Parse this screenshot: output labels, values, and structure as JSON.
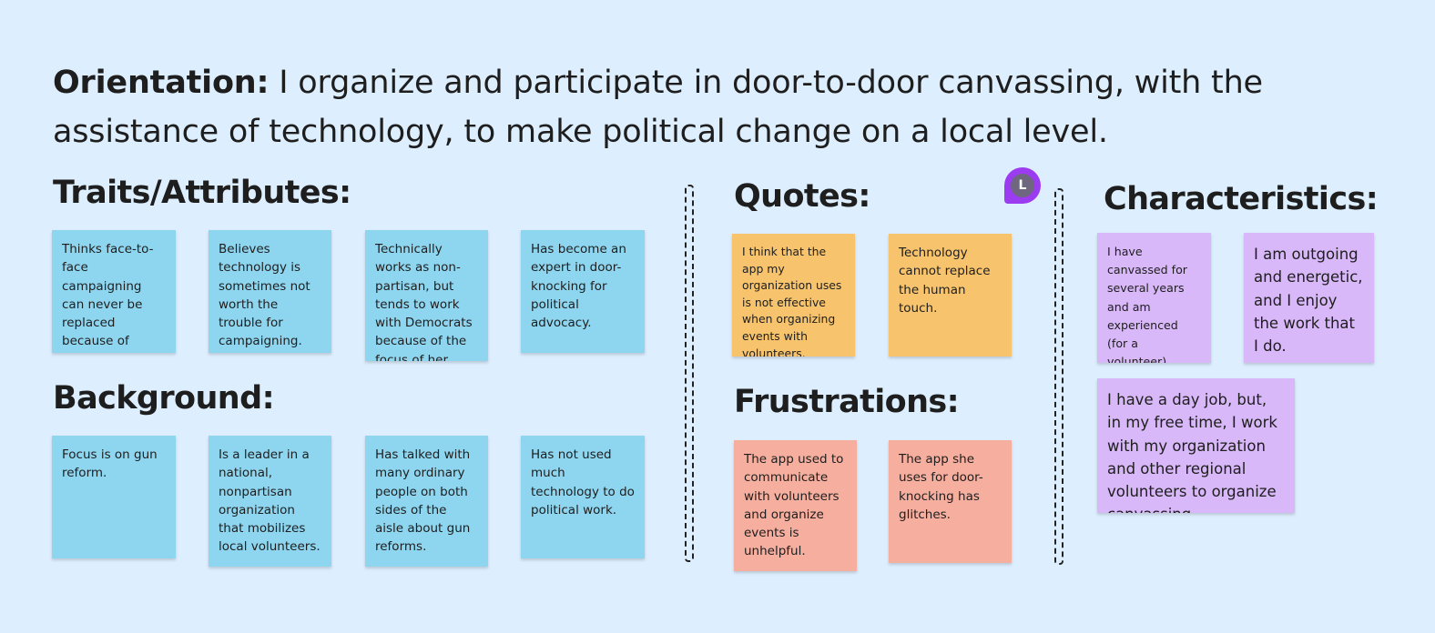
{
  "orientation": {
    "lead": "Orientation:",
    "text": " I organize and participate in door-to-door canvassing, with the assistance of technology, to make political change on a local level."
  },
  "sections": {
    "traits": {
      "title": "Traits/Attributes:",
      "notes": [
        "Thinks face-to-face campaigning can never be replaced because of human touch.",
        "Believes technology is sometimes not worth the trouble for campaigning.",
        "Technically works as non-partisan, but tends to work with Democrats because of the focus of her work.",
        "Has become an expert in door-knocking for political advocacy."
      ]
    },
    "background": {
      "title": "Background:",
      "notes": [
        "Focus is on gun reform.",
        "Is a leader in a national, nonpartisan organization that mobilizes local volunteers.",
        "Has talked with many ordinary people on both sides of the aisle about gun reforms.",
        "Has not used much technology to do political work."
      ]
    },
    "quotes": {
      "title": "Quotes:",
      "notes": [
        "I think that the app my organization uses is not effective when organizing events with volunteers.",
        "Technology cannot replace the human touch."
      ]
    },
    "frustrations": {
      "title": "Frustrations:",
      "notes": [
        "The app used to communicate with volunteers and organize events is unhelpful.",
        "The app she uses for door-knocking has glitches."
      ]
    },
    "characteristics": {
      "title": "Characteristics:",
      "notes": [
        "I have canvassed for several years and am experienced (for a volunteer).",
        "I am outgoing and energetic, and I enjoy the work that I do.",
        "I have a day job, but, in my free time, I work with my organization and other regional volunteers to organize canvassing."
      ]
    }
  },
  "collaborator": {
    "initial": "L"
  },
  "colors": {
    "background": "#ddeefe",
    "blue_note": "#8ed6f0",
    "orange_note": "#f7c46d",
    "salmon_note": "#f6ae9e",
    "purple_note": "#d8b8f8",
    "cursor": "#9b3cf0"
  }
}
